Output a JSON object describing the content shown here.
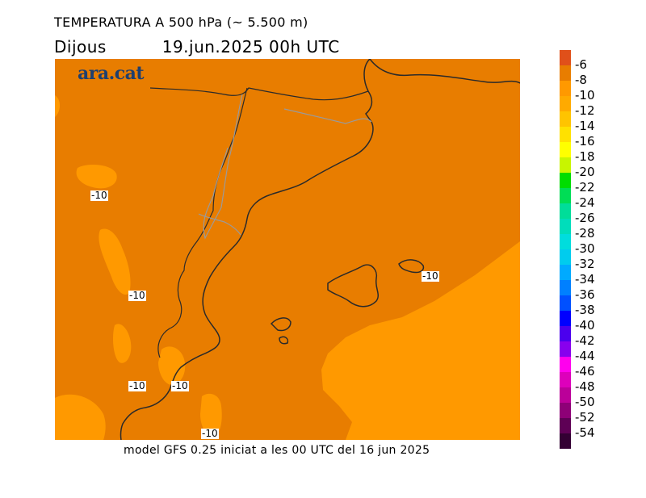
{
  "header": {
    "title": "TEMPERATURA A 500 hPa (~ 5.500 m)",
    "day": "Dijous",
    "datetime": "19.jun.2025 00h UTC"
  },
  "footer": {
    "text": "model GFS 0.25 iniciat a les 00 UTC del 16 jun 2025"
  },
  "logo": {
    "text": "ara.cat",
    "color": "#1e3f6e"
  },
  "map": {
    "field_colors": {
      "minus_8_to_minus_10": "#e87d00",
      "minus_10_to_minus_12": "#ff9900"
    },
    "contour_labels": [
      "-10",
      "-10",
      "-10",
      "-10",
      "-10",
      "-10"
    ]
  },
  "legend": {
    "levels": [
      {
        "label": "-6",
        "color": "#e0501a"
      },
      {
        "label": "-8",
        "color": "#e87d00"
      },
      {
        "label": "-10",
        "color": "#ff9900"
      },
      {
        "label": "-12",
        "color": "#ffaa00"
      },
      {
        "label": "-14",
        "color": "#ffc400"
      },
      {
        "label": "-16",
        "color": "#ffe100"
      },
      {
        "label": "-18",
        "color": "#ffff00"
      },
      {
        "label": "-20",
        "color": "#c8f500"
      },
      {
        "label": "-22",
        "color": "#00dd00"
      },
      {
        "label": "-24",
        "color": "#00dd55"
      },
      {
        "label": "-26",
        "color": "#00dd99"
      },
      {
        "label": "-28",
        "color": "#00ddbb"
      },
      {
        "label": "-30",
        "color": "#00dddd"
      },
      {
        "label": "-32",
        "color": "#00ccee"
      },
      {
        "label": "-34",
        "color": "#00aaff"
      },
      {
        "label": "-36",
        "color": "#0080ff"
      },
      {
        "label": "-38",
        "color": "#0050ff"
      },
      {
        "label": "-40",
        "color": "#0000ff"
      },
      {
        "label": "-42",
        "color": "#4b00ee"
      },
      {
        "label": "-44",
        "color": "#8800ee"
      },
      {
        "label": "-46",
        "color": "#ff00ee"
      },
      {
        "label": "-48",
        "color": "#dd00bb"
      },
      {
        "label": "-50",
        "color": "#bb0099"
      },
      {
        "label": "-52",
        "color": "#8e0077"
      },
      {
        "label": "-54",
        "color": "#5e0055"
      },
      {
        "label": "",
        "color": "#330033"
      }
    ]
  }
}
